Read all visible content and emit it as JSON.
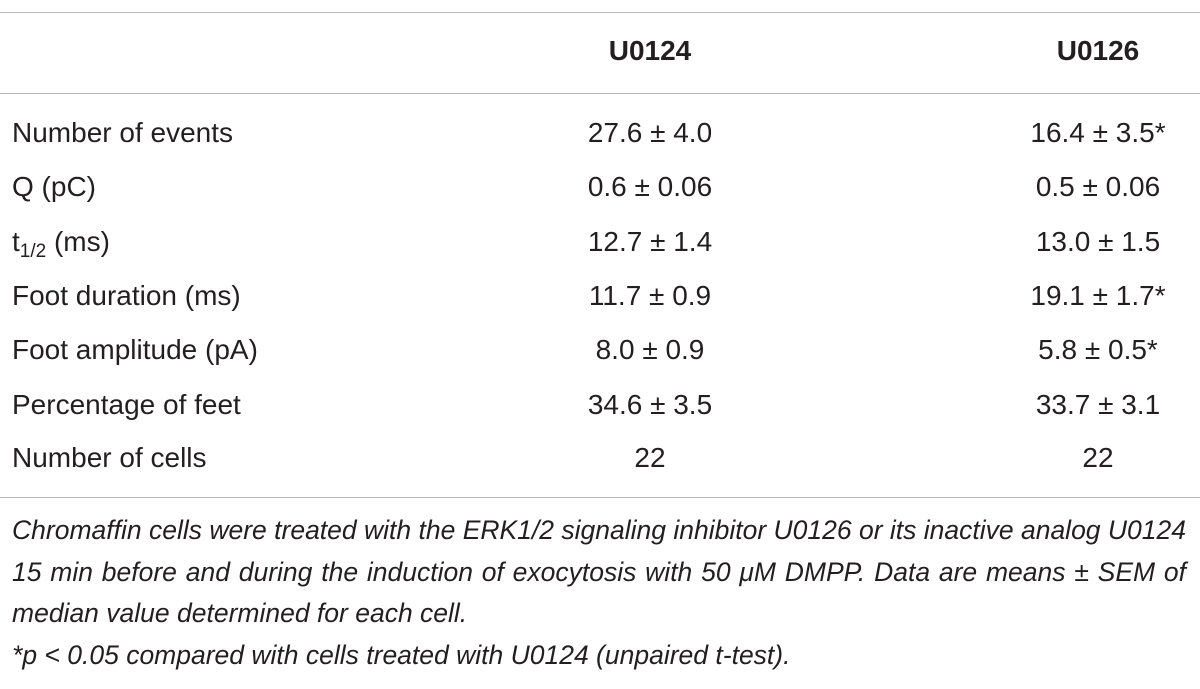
{
  "table": {
    "columns": [
      "U0124",
      "U0126"
    ],
    "rows": [
      [
        "Number of events",
        "27.6 ± 4.0",
        "16.4 ± 3.5*"
      ],
      [
        "Q (pC)",
        "0.6 ± 0.06",
        "0.5 ± 0.06"
      ],
      [
        {
          "main": "t",
          "sub": "1/2",
          "rest": "(ms)"
        },
        "12.7 ± 1.4",
        "13.0 ± 1.5"
      ],
      [
        "Foot duration (ms)",
        "11.7 ± 0.9",
        "19.1 ± 1.7*"
      ],
      [
        "Foot amplitude (pA)",
        "8.0 ± 0.9",
        "5.8 ± 0.5*"
      ],
      [
        "Percentage of feet",
        "34.6 ± 3.5",
        "33.7 ± 3.1"
      ],
      [
        "Number of cells",
        "22",
        "22"
      ]
    ]
  },
  "footnote": {
    "main": "Chromaffin cells were treated with the ERK1/2 signaling inhibitor U0126 or its inactive analog U0124 15 min before and during the induction of exocytosis with 50 μM DMPP. Data are means ± SEM of median value determined for each cell.",
    "significance": "*p < 0.05 compared with cells treated with U0124 (unpaired t-test)."
  }
}
